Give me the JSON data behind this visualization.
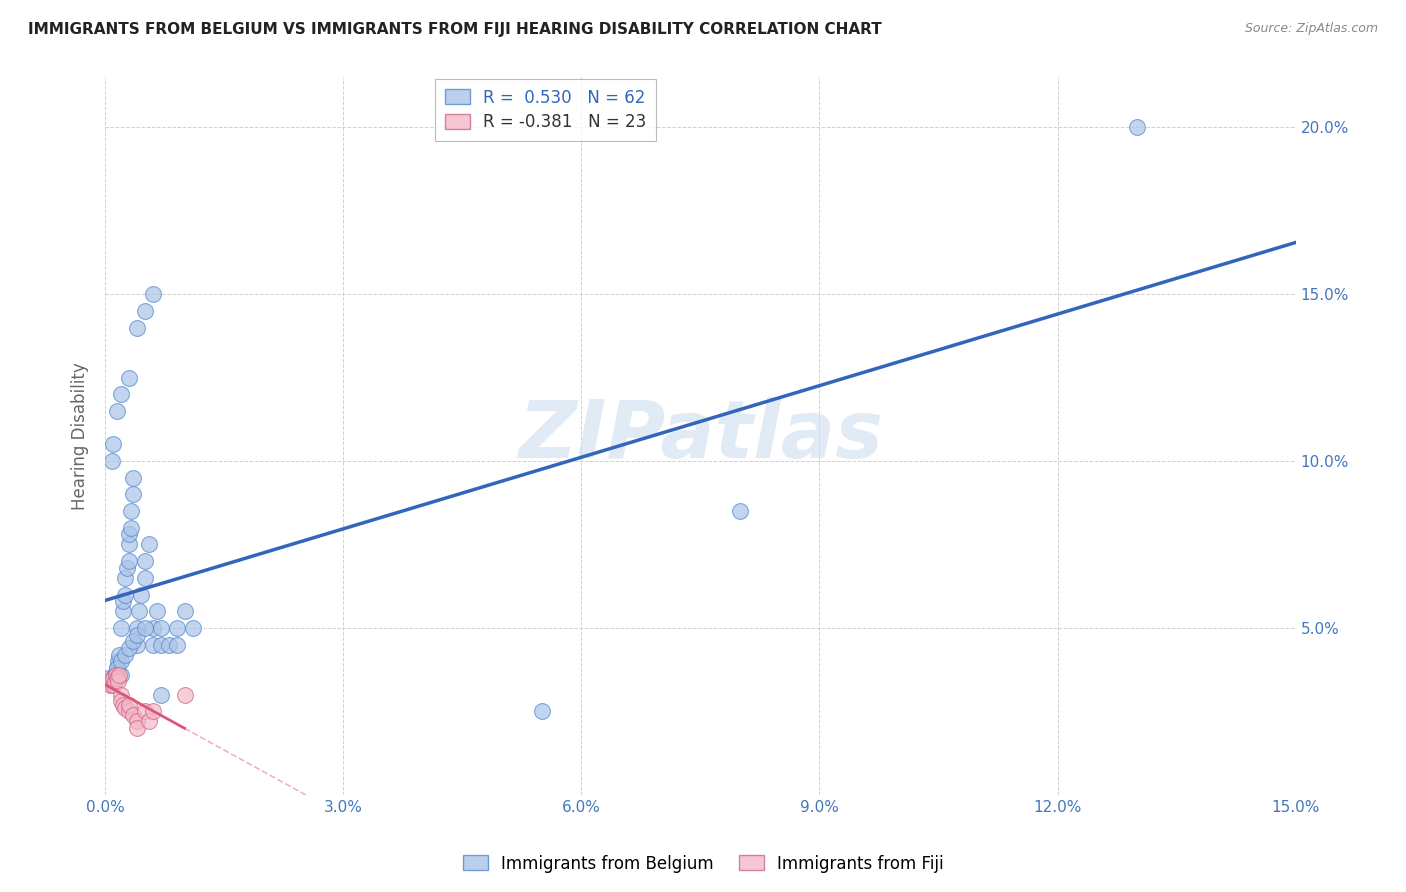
{
  "title": "IMMIGRANTS FROM BELGIUM VS IMMIGRANTS FROM FIJI HEARING DISABILITY CORRELATION CHART",
  "source": "Source: ZipAtlas.com",
  "ylabel": "Hearing Disability",
  "xlim": [
    0.0,
    0.15
  ],
  "ylim": [
    0.0,
    0.215
  ],
  "xticks": [
    0.0,
    0.03,
    0.06,
    0.09,
    0.12,
    0.15
  ],
  "yticks": [
    0.0,
    0.05,
    0.1,
    0.15,
    0.2
  ],
  "legend_belgium": "R =  0.530   N = 62",
  "legend_fiji": "R = -0.381   N = 23",
  "belgium_color": "#aac4e8",
  "fiji_color": "#f4b8c8",
  "belgium_edge_color": "#5588cc",
  "fiji_edge_color": "#cc6688",
  "belgium_line_color": "#3366BB",
  "fiji_line_color": "#dd5577",
  "watermark": "ZIPatlas",
  "belgium_x": [
    0.0005,
    0.0008,
    0.001,
    0.0012,
    0.0013,
    0.0015,
    0.0015,
    0.0016,
    0.0018,
    0.002,
    0.002,
    0.0022,
    0.0023,
    0.0025,
    0.0025,
    0.0027,
    0.003,
    0.003,
    0.003,
    0.0032,
    0.0033,
    0.0035,
    0.0035,
    0.004,
    0.004,
    0.0042,
    0.0045,
    0.005,
    0.005,
    0.0055,
    0.006,
    0.006,
    0.0065,
    0.007,
    0.007,
    0.008,
    0.009,
    0.009,
    0.01,
    0.011,
    0.0008,
    0.001,
    0.0012,
    0.0015,
    0.002,
    0.0025,
    0.003,
    0.0035,
    0.004,
    0.005,
    0.0008,
    0.001,
    0.0015,
    0.002,
    0.003,
    0.004,
    0.005,
    0.006,
    0.007,
    0.13,
    0.055,
    0.08
  ],
  "belgium_y": [
    0.035,
    0.034,
    0.033,
    0.034,
    0.036,
    0.035,
    0.038,
    0.04,
    0.042,
    0.036,
    0.05,
    0.055,
    0.058,
    0.06,
    0.065,
    0.068,
    0.07,
    0.075,
    0.078,
    0.08,
    0.085,
    0.09,
    0.095,
    0.045,
    0.05,
    0.055,
    0.06,
    0.065,
    0.07,
    0.075,
    0.045,
    0.05,
    0.055,
    0.045,
    0.05,
    0.045,
    0.045,
    0.05,
    0.055,
    0.05,
    0.034,
    0.035,
    0.036,
    0.038,
    0.04,
    0.042,
    0.044,
    0.046,
    0.048,
    0.05,
    0.1,
    0.105,
    0.115,
    0.12,
    0.125,
    0.14,
    0.145,
    0.15,
    0.03,
    0.2,
    0.025,
    0.085
  ],
  "fiji_x": [
    0.0004,
    0.0006,
    0.0008,
    0.001,
    0.001,
    0.0012,
    0.0013,
    0.0015,
    0.0016,
    0.0018,
    0.002,
    0.002,
    0.0022,
    0.0025,
    0.003,
    0.003,
    0.0035,
    0.004,
    0.004,
    0.005,
    0.0055,
    0.006,
    0.01
  ],
  "fiji_y": [
    0.034,
    0.033,
    0.034,
    0.033,
    0.035,
    0.034,
    0.036,
    0.035,
    0.034,
    0.036,
    0.03,
    0.028,
    0.027,
    0.026,
    0.025,
    0.027,
    0.024,
    0.022,
    0.02,
    0.025,
    0.022,
    0.025,
    0.03
  ]
}
